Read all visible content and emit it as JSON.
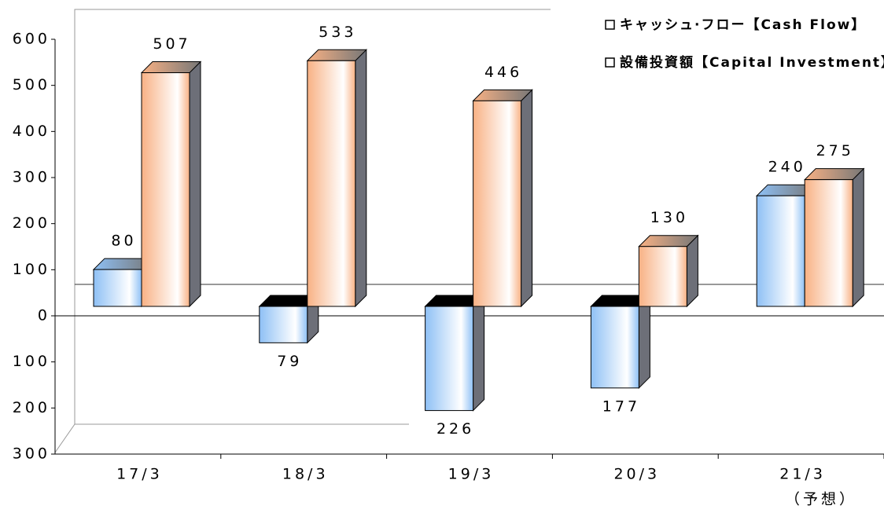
{
  "chart_data": {
    "type": "bar3d",
    "categories": [
      "17/3",
      "18/3",
      "19/3",
      "20/3",
      "21/3"
    ],
    "series": [
      {
        "name": "キャッシュ·フロー【Cash Flow】",
        "color": "#8ec0f5",
        "values": [
          80,
          -79,
          -226,
          -177,
          240
        ],
        "value_labels": [
          "80",
          "79",
          "226",
          "177",
          "240"
        ]
      },
      {
        "name": "設備投資額【Capital Investment】",
        "color": "#f8b184",
        "values": [
          507,
          533,
          446,
          130,
          275
        ]
      }
    ],
    "ylim": [
      -300,
      600
    ],
    "yticks": [
      {
        "value": -300,
        "label": "300"
      },
      {
        "value": -200,
        "label": "200"
      },
      {
        "value": -100,
        "label": "100"
      },
      0,
      100,
      200,
      300,
      400,
      500,
      600
    ],
    "annotation": "（予想）",
    "grid": false,
    "legend": "top-right"
  }
}
